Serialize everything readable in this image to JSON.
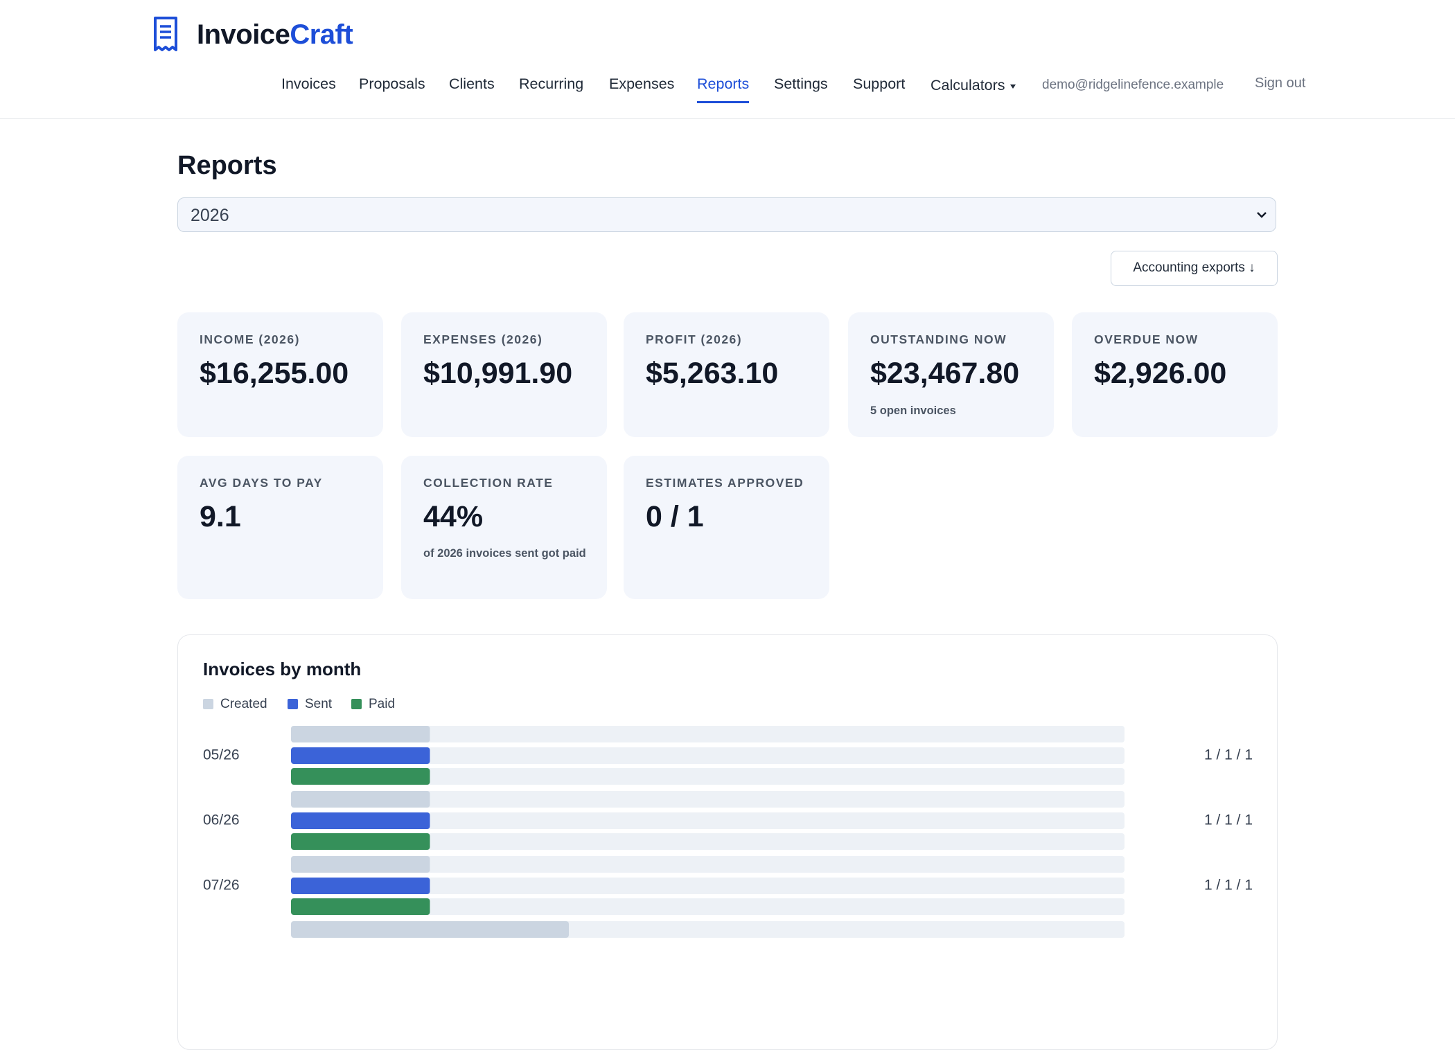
{
  "header": {
    "logo_primary": "Invoice",
    "logo_accent": "Craft",
    "nav": [
      "Invoices",
      "Proposals",
      "Clients",
      "Recurring",
      "Expenses",
      "Reports",
      "Settings",
      "Support",
      "Calculators"
    ],
    "user_email": "demo@ridgelinefence.example",
    "sign_out": "Sign out"
  },
  "page": {
    "title": "Reports",
    "year_select": "2026",
    "export_button": "Accounting exports ↓"
  },
  "stats": [
    {
      "label": "INCOME (2026)",
      "value": "$16,255.00"
    },
    {
      "label": "EXPENSES (2026)",
      "value": "$10,991.90"
    },
    {
      "label": "PROFIT (2026)",
      "value": "$5,263.10"
    },
    {
      "label": "OUTSTANDING NOW",
      "value": "$23,467.80",
      "note": "5 open invoices"
    },
    {
      "label": "OVERDUE NOW",
      "value": "$2,926.00"
    },
    {
      "label": "AVG DAYS TO PAY",
      "value": "9.1"
    },
    {
      "label": "COLLECTION RATE",
      "value": "44%",
      "note": "of 2026 invoices sent got paid"
    },
    {
      "label": "ESTIMATES APPROVED",
      "value": "0 / 1"
    }
  ],
  "chart_data": {
    "type": "bar",
    "title": "Invoices by month",
    "categories": [
      "05/26",
      "06/26",
      "07/26",
      null
    ],
    "series": [
      {
        "name": "Created",
        "color": "#cbd5e1",
        "values": [
          1,
          1,
          1,
          2
        ]
      },
      {
        "name": "Sent",
        "color": "#3b63d8",
        "values": [
          1,
          1,
          1,
          null
        ]
      },
      {
        "name": "Paid",
        "color": "#35905a",
        "values": [
          1,
          1,
          1,
          null
        ]
      }
    ],
    "row_labels": [
      "1 / 1 / 1",
      "1 / 1 / 1",
      "1 / 1 / 1",
      null
    ],
    "xlim": [
      0,
      6
    ]
  }
}
